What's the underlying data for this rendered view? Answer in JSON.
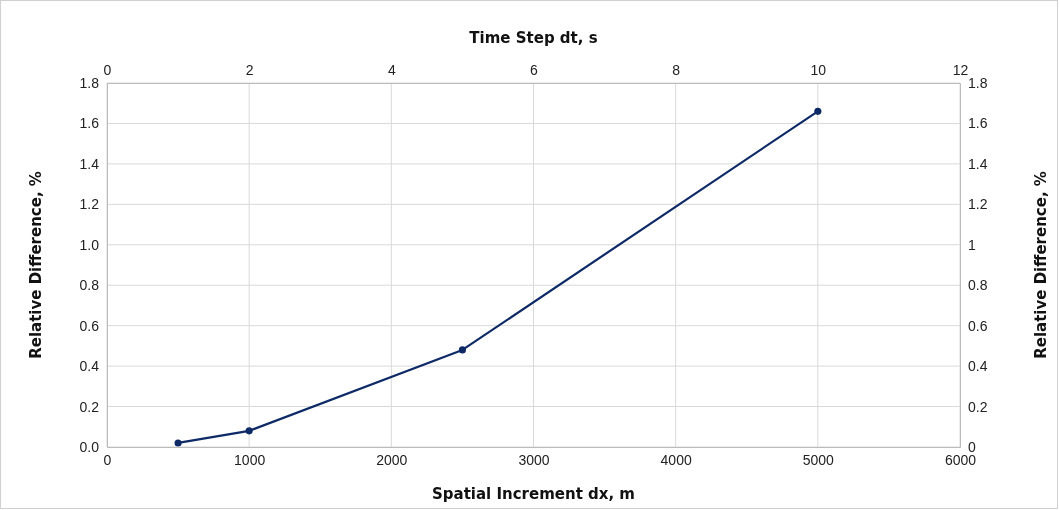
{
  "chart_data": {
    "type": "line",
    "xlabel": "Spatial Increment dx, m",
    "x2label": "Time Step dt, s",
    "ylabel": "Relative Difference, %",
    "y2label": "Relative Difference, %",
    "x": [
      500,
      1000,
      2500,
      5000
    ],
    "series": [
      {
        "color": "#0e2a66",
        "values": [
          0.02,
          0.08,
          0.48,
          1.66
        ]
      }
    ],
    "xlim": [
      0,
      6000
    ],
    "xticks": [
      0,
      1000,
      2000,
      3000,
      4000,
      5000,
      6000
    ],
    "x2lim": [
      0,
      12
    ],
    "x2ticks": [
      0,
      2,
      4,
      6,
      8,
      10,
      12
    ],
    "ylim": [
      0,
      1.8
    ],
    "yticks": [
      {
        "value": 0,
        "label": "0.0"
      },
      0.2,
      0.4,
      0.6,
      0.8,
      {
        "value": 1,
        "label": "1.0"
      },
      1.2,
      1.4,
      1.6,
      1.8
    ],
    "y2lim": [
      0,
      1.8
    ],
    "y2ticks": [
      0,
      0.2,
      0.4,
      0.6,
      0.8,
      1,
      1.2,
      1.4,
      1.6,
      1.8
    ],
    "grid": true,
    "marker": "circle",
    "line_style": "solid"
  }
}
